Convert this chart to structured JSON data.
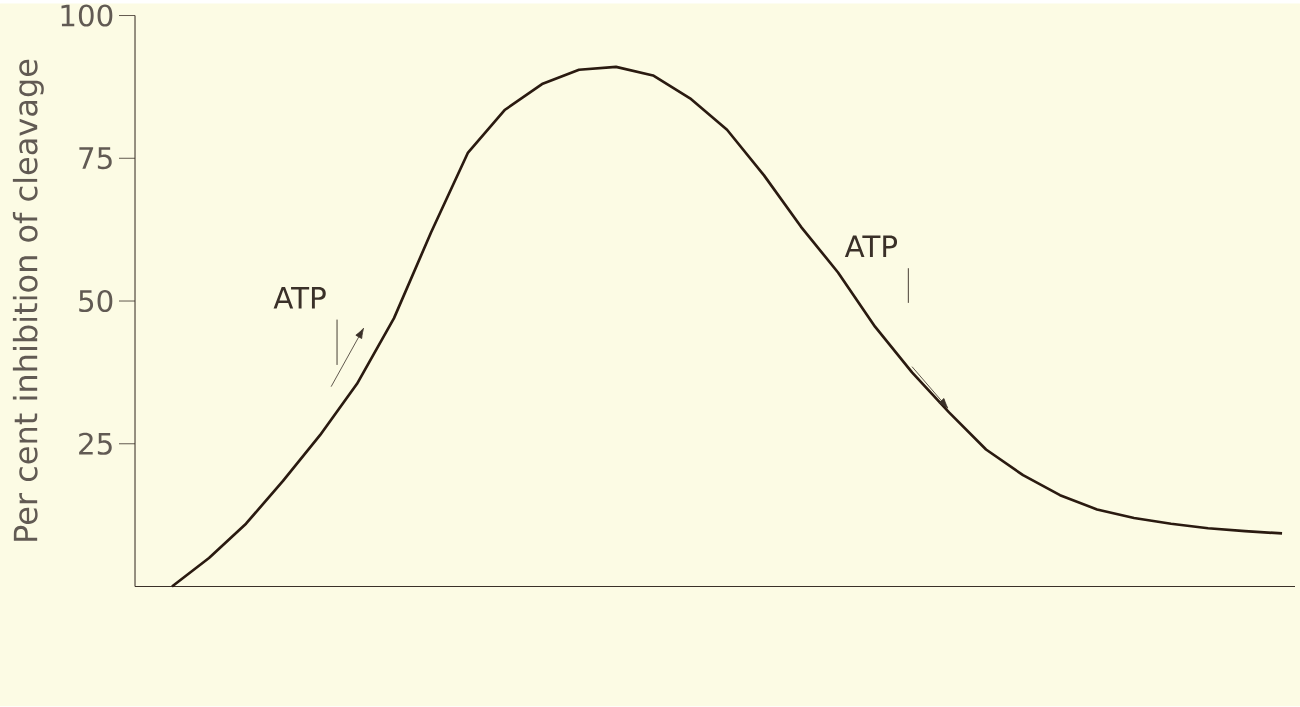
{
  "chart_data": {
    "type": "line",
    "ylabel": "Per cent inhibition of cleavage",
    "annotations": [
      "ATP",
      "ATP"
    ],
    "categories": [
      null,
      null,
      null,
      null,
      null,
      null,
      null,
      null,
      null,
      null,
      null,
      null,
      null,
      null,
      null,
      null,
      null,
      null,
      null,
      null,
      null,
      null,
      null,
      null,
      null,
      null,
      null,
      null,
      null,
      null,
      null
    ],
    "values": [
      0,
      5,
      11,
      18.5,
      26.5,
      35.5,
      47,
      62,
      76,
      83.5,
      88,
      90.5,
      91,
      89.5,
      85.5,
      80,
      72,
      63,
      55,
      45.5,
      37.5,
      30.5,
      24,
      19.5,
      16,
      13.5,
      12,
      11,
      10.2,
      9.7,
      9.3
    ],
    "color": "#2a1a10",
    "marker": "none",
    "line_style": "solid",
    "tick_labels": "y",
    "ylim": [
      0,
      100
    ],
    "yticks": [
      25,
      50,
      75,
      100
    ]
  }
}
